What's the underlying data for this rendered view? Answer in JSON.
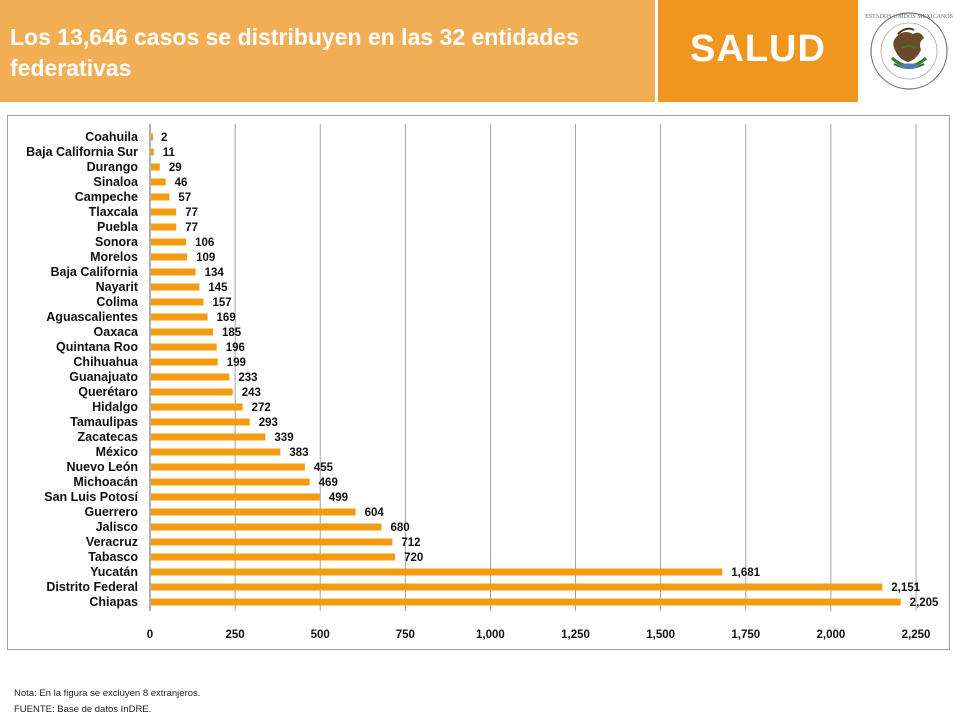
{
  "header": {
    "title": "Los 13,646 casos se distribuyen en las 32 entidades federativas",
    "brand": "SALUD",
    "seal_text": "ESTADOS UNIDOS MEXICANOS"
  },
  "colors": {
    "title_bg": "#f2ae54",
    "brand_bg": "#f0961e",
    "bar": "#f39c12",
    "grid": "#9a9a9a"
  },
  "chart_data": {
    "type": "bar",
    "orientation": "horizontal",
    "categories": [
      "Coahuila",
      "Baja California Sur",
      "Durango",
      "Sinaloa",
      "Campeche",
      "Tlaxcala",
      "Puebla",
      "Sonora",
      "Morelos",
      "Baja California",
      "Nayarit",
      "Colima",
      "Aguascalientes",
      "Oaxaca",
      "Quintana Roo",
      "Chihuahua",
      "Guanajuato",
      "Querétaro",
      "Hidalgo",
      "Tamaulipas",
      "Zacatecas",
      "México",
      "Nuevo León",
      "Michoacán",
      "San Luis Potosí",
      "Guerrero",
      "Jalisco",
      "Veracruz",
      "Tabasco",
      "Yucatán",
      "Distrito Federal",
      "Chiapas"
    ],
    "values": [
      2,
      11,
      29,
      46,
      57,
      77,
      77,
      106,
      109,
      134,
      145,
      157,
      169,
      185,
      196,
      199,
      233,
      243,
      272,
      293,
      339,
      383,
      455,
      469,
      499,
      604,
      680,
      712,
      720,
      1681,
      2151,
      2205
    ],
    "value_labels": [
      "2",
      "11",
      "29",
      "46",
      "57",
      "77",
      "77",
      "106",
      "109",
      "134",
      "145",
      "157",
      "169",
      "185",
      "196",
      "199",
      "233",
      "243",
      "272",
      "293",
      "339",
      "383",
      "455",
      "469",
      "499",
      "604",
      "680",
      "712",
      "720",
      "1,681",
      "2,151",
      "2,205"
    ],
    "xlim": [
      0,
      2250
    ],
    "xticks": [
      0,
      250,
      500,
      750,
      1000,
      1250,
      1500,
      1750,
      2000,
      2250
    ],
    "xtick_labels": [
      "0",
      "250",
      "500",
      "750",
      "1,000",
      "1,250",
      "1,500",
      "1,750",
      "2,000",
      "2,250"
    ],
    "grid": true,
    "legend": false
  },
  "footer": {
    "note": "Nota:  En la figura se excluyen 8 extranjeros.",
    "source": "FUENTE:  Base de datos InDRE."
  }
}
